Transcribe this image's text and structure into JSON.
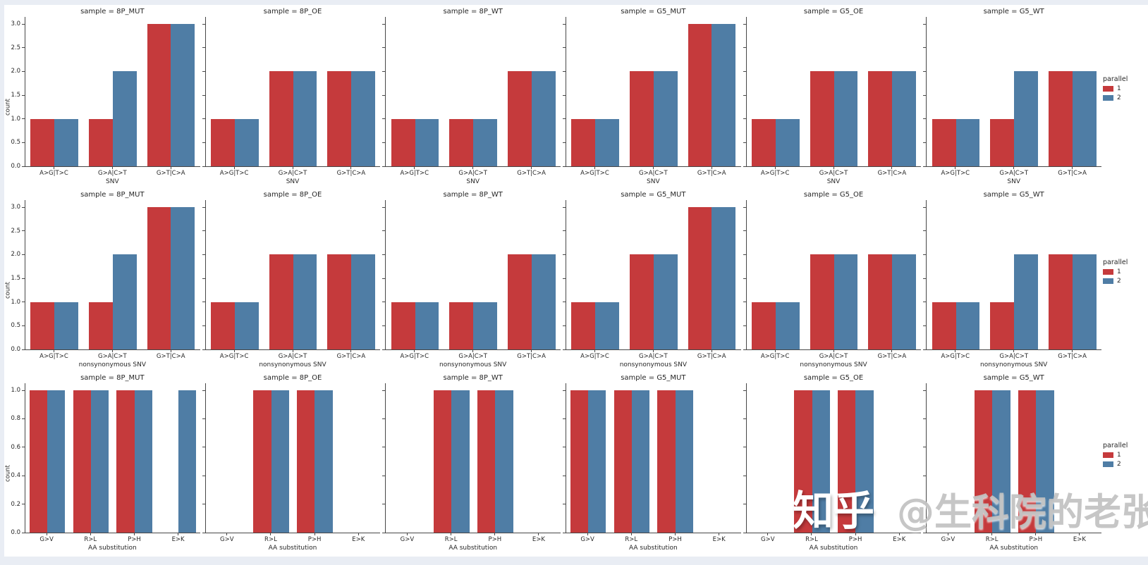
{
  "watermark": {
    "brand": "知乎",
    "handle": "@生科院的老张"
  },
  "palette": {
    "parallel_1": "#c53a3c",
    "parallel_2": "#4f7da5",
    "page_background": "#e9edf4",
    "plot_background": "#ffffff",
    "spine": "#474747",
    "text": "#262626"
  },
  "legend": {
    "title": "parallel",
    "entries": [
      {
        "label": "1",
        "color": "#c53a3c"
      },
      {
        "label": "2",
        "color": "#4f7da5"
      }
    ]
  },
  "chart_data": [
    {
      "type": "bar",
      "xlabel": "SNV",
      "ylabel": "count",
      "hue": "parallel",
      "ymax": 3.15,
      "ytick_labels": [
        "0.0",
        "0.5",
        "1.0",
        "1.5",
        "2.0",
        "2.5",
        "3.0"
      ],
      "ytick_values": [
        0,
        0.5,
        1,
        1.5,
        2,
        2.5,
        3
      ],
      "categories": [
        "A>G|T>C",
        "G>A|C>T",
        "G>T|C>A"
      ],
      "legend_position": "right",
      "grid": false,
      "subplots": [
        {
          "title": "sample = 8P_MUT",
          "series": [
            {
              "name": "1",
              "values": [
                1,
                1,
                3
              ]
            },
            {
              "name": "2",
              "values": [
                1,
                2,
                3
              ]
            }
          ]
        },
        {
          "title": "sample = 8P_OE",
          "series": [
            {
              "name": "1",
              "values": [
                1,
                2,
                2
              ]
            },
            {
              "name": "2",
              "values": [
                1,
                2,
                2
              ]
            }
          ]
        },
        {
          "title": "sample = 8P_WT",
          "series": [
            {
              "name": "1",
              "values": [
                1,
                1,
                2
              ]
            },
            {
              "name": "2",
              "values": [
                1,
                1,
                2
              ]
            }
          ]
        },
        {
          "title": "sample = G5_MUT",
          "series": [
            {
              "name": "1",
              "values": [
                1,
                2,
                3
              ]
            },
            {
              "name": "2",
              "values": [
                1,
                2,
                3
              ]
            }
          ]
        },
        {
          "title": "sample = G5_OE",
          "series": [
            {
              "name": "1",
              "values": [
                1,
                2,
                2
              ]
            },
            {
              "name": "2",
              "values": [
                1,
                2,
                2
              ]
            }
          ]
        },
        {
          "title": "sample = G5_WT",
          "series": [
            {
              "name": "1",
              "values": [
                1,
                1,
                2
              ]
            },
            {
              "name": "2",
              "values": [
                1,
                2,
                2
              ]
            }
          ]
        }
      ]
    },
    {
      "type": "bar",
      "xlabel": "nonsynonymous SNV",
      "ylabel": "count",
      "hue": "parallel",
      "ymax": 3.15,
      "ytick_labels": [
        "0.0",
        "0.5",
        "1.0",
        "1.5",
        "2.0",
        "2.5",
        "3.0"
      ],
      "ytick_values": [
        0,
        0.5,
        1,
        1.5,
        2,
        2.5,
        3
      ],
      "categories": [
        "A>G|T>C",
        "G>A|C>T",
        "G>T|C>A"
      ],
      "legend_position": "right",
      "grid": false,
      "subplots": [
        {
          "title": "sample = 8P_MUT",
          "series": [
            {
              "name": "1",
              "values": [
                1,
                1,
                3
              ]
            },
            {
              "name": "2",
              "values": [
                1,
                2,
                3
              ]
            }
          ]
        },
        {
          "title": "sample = 8P_OE",
          "series": [
            {
              "name": "1",
              "values": [
                1,
                2,
                2
              ]
            },
            {
              "name": "2",
              "values": [
                1,
                2,
                2
              ]
            }
          ]
        },
        {
          "title": "sample = 8P_WT",
          "series": [
            {
              "name": "1",
              "values": [
                1,
                1,
                2
              ]
            },
            {
              "name": "2",
              "values": [
                1,
                1,
                2
              ]
            }
          ]
        },
        {
          "title": "sample = G5_MUT",
          "series": [
            {
              "name": "1",
              "values": [
                1,
                2,
                3
              ]
            },
            {
              "name": "2",
              "values": [
                1,
                2,
                3
              ]
            }
          ]
        },
        {
          "title": "sample = G5_OE",
          "series": [
            {
              "name": "1",
              "values": [
                1,
                2,
                2
              ]
            },
            {
              "name": "2",
              "values": [
                1,
                2,
                2
              ]
            }
          ]
        },
        {
          "title": "sample = G5_WT",
          "series": [
            {
              "name": "1",
              "values": [
                1,
                1,
                2
              ]
            },
            {
              "name": "2",
              "values": [
                1,
                2,
                2
              ]
            }
          ]
        }
      ]
    },
    {
      "type": "bar",
      "xlabel": "AA substitution",
      "ylabel": "count",
      "hue": "parallel",
      "ymax": 1.05,
      "ytick_labels": [
        "0.0",
        "0.2",
        "0.4",
        "0.6",
        "0.8",
        "1.0"
      ],
      "ytick_values": [
        0,
        0.2,
        0.4,
        0.6,
        0.8,
        1.0
      ],
      "categories": [
        "G>V",
        "R>L",
        "P>H",
        "E>K"
      ],
      "legend_position": "right",
      "grid": false,
      "subplots": [
        {
          "title": "sample = 8P_MUT",
          "series": [
            {
              "name": "1",
              "values": [
                1,
                1,
                1,
                0
              ]
            },
            {
              "name": "2",
              "values": [
                1,
                1,
                1,
                1
              ]
            }
          ]
        },
        {
          "title": "sample = 8P_OE",
          "series": [
            {
              "name": "1",
              "values": [
                0,
                1,
                1,
                0
              ]
            },
            {
              "name": "2",
              "values": [
                0,
                1,
                1,
                0
              ]
            }
          ]
        },
        {
          "title": "sample = 8P_WT",
          "series": [
            {
              "name": "1",
              "values": [
                0,
                1,
                1,
                0
              ]
            },
            {
              "name": "2",
              "values": [
                0,
                1,
                1,
                0
              ]
            }
          ]
        },
        {
          "title": "sample = G5_MUT",
          "series": [
            {
              "name": "1",
              "values": [
                1,
                1,
                1,
                0
              ]
            },
            {
              "name": "2",
              "values": [
                1,
                1,
                1,
                0
              ]
            }
          ]
        },
        {
          "title": "sample = G5_OE",
          "series": [
            {
              "name": "1",
              "values": [
                0,
                1,
                1,
                0
              ]
            },
            {
              "name": "2",
              "values": [
                0,
                1,
                1,
                0
              ]
            }
          ]
        },
        {
          "title": "sample = G5_WT",
          "series": [
            {
              "name": "1",
              "values": [
                0,
                1,
                1,
                0
              ]
            },
            {
              "name": "2",
              "values": [
                0,
                1,
                1,
                0
              ]
            }
          ]
        }
      ]
    }
  ]
}
